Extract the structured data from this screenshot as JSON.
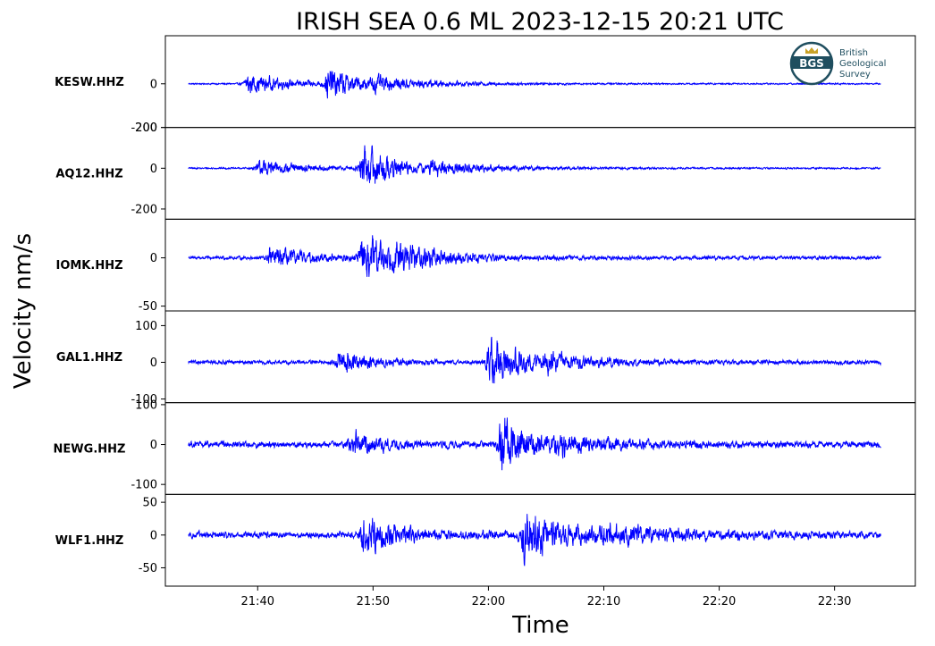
{
  "figure": {
    "title": "IRISH SEA 0.6 ML   2023-12-15 20:21 UTC",
    "ylabel": "Velocity nm/s",
    "xlabel": "Time",
    "logo": {
      "badge_text": "BGS",
      "line1": "British",
      "line2": "Geological",
      "line3": "Survey",
      "colors": {
        "ring": "#1f4e5f",
        "accent": "#c9a227"
      }
    }
  },
  "chart_data": {
    "type": "line",
    "line_color": "#0000ff",
    "xlabel": "Time",
    "ylabel": "Velocity nm/s",
    "x_ticks": [
      "21:40",
      "21:50",
      "22:00",
      "22:10",
      "22:20",
      "22:30"
    ],
    "xlim": [
      "21:32",
      "22:37"
    ],
    "trace_span": [
      "21:34",
      "22:34"
    ],
    "grid": false,
    "panels": [
      {
        "station": "KESW.HHZ",
        "ylim": [
          -200,
          220
        ],
        "yticks": [
          {
            "v": 0,
            "label": "0"
          },
          {
            "v": -200,
            "label": "-200"
          }
        ],
        "noise": 6,
        "bursts": [
          {
            "t": "21:39",
            "amp": 75,
            "decay": 4
          },
          {
            "t": "21:46",
            "amp": 110,
            "decay": 3
          },
          {
            "t": "21:50",
            "amp": 35,
            "decay": 6
          }
        ]
      },
      {
        "station": "AQ12.HHZ",
        "ylim": [
          -250,
          200
        ],
        "yticks": [
          {
            "v": 200,
            "label": "200"
          },
          {
            "v": 0,
            "label": "0"
          },
          {
            "v": -200,
            "label": "-200"
          }
        ],
        "noise": 7,
        "bursts": [
          {
            "t": "21:40",
            "amp": 70,
            "decay": 4
          },
          {
            "t": "21:49",
            "amp": 190,
            "decay": 3
          },
          {
            "t": "21:55",
            "amp": 45,
            "decay": 6
          }
        ]
      },
      {
        "station": "IOMK.HHZ",
        "ylim": [
          -55,
          40
        ],
        "yticks": [
          {
            "v": 0,
            "label": "0"
          },
          {
            "v": -50,
            "label": "-50"
          }
        ],
        "noise": 3,
        "bursts": [
          {
            "t": "21:41",
            "amp": 16,
            "decay": 4
          },
          {
            "t": "21:49",
            "amp": 42,
            "decay": 3
          },
          {
            "t": "21:52",
            "amp": 12,
            "decay": 6
          }
        ]
      },
      {
        "station": "GAL1.HHZ",
        "ylim": [
          -110,
          140
        ],
        "yticks": [
          {
            "v": 100,
            "label": "100"
          },
          {
            "v": 0,
            "label": "0"
          },
          {
            "v": -100,
            "label": "-100"
          }
        ],
        "noise": 9,
        "bursts": [
          {
            "t": "21:47",
            "amp": 50,
            "decay": 3
          },
          {
            "t": "22:00",
            "amp": 110,
            "decay": 3
          },
          {
            "t": "22:05",
            "amp": 25,
            "decay": 6
          }
        ]
      },
      {
        "station": "NEWG.HHZ",
        "ylim": [
          -125,
          105
        ],
        "yticks": [
          {
            "v": 100,
            "label": "100"
          },
          {
            "v": 0,
            "label": "0"
          },
          {
            "v": -100,
            "label": "-100"
          }
        ],
        "noise": 13,
        "bursts": [
          {
            "t": "21:48",
            "amp": 45,
            "decay": 3
          },
          {
            "t": "22:01",
            "amp": 105,
            "decay": 3
          },
          {
            "t": "22:06",
            "amp": 25,
            "decay": 6
          }
        ]
      },
      {
        "station": "WLF1.HHZ",
        "ylim": [
          -78,
          62
        ],
        "yticks": [
          {
            "v": 50,
            "label": "50"
          },
          {
            "v": 0,
            "label": "0"
          },
          {
            "v": -50,
            "label": "-50"
          }
        ],
        "noise": 8,
        "bursts": [
          {
            "t": "21:49",
            "amp": 42,
            "decay": 4
          },
          {
            "t": "22:03",
            "amp": 60,
            "decay": 4
          },
          {
            "t": "22:10",
            "amp": 18,
            "decay": 8
          }
        ]
      }
    ]
  }
}
